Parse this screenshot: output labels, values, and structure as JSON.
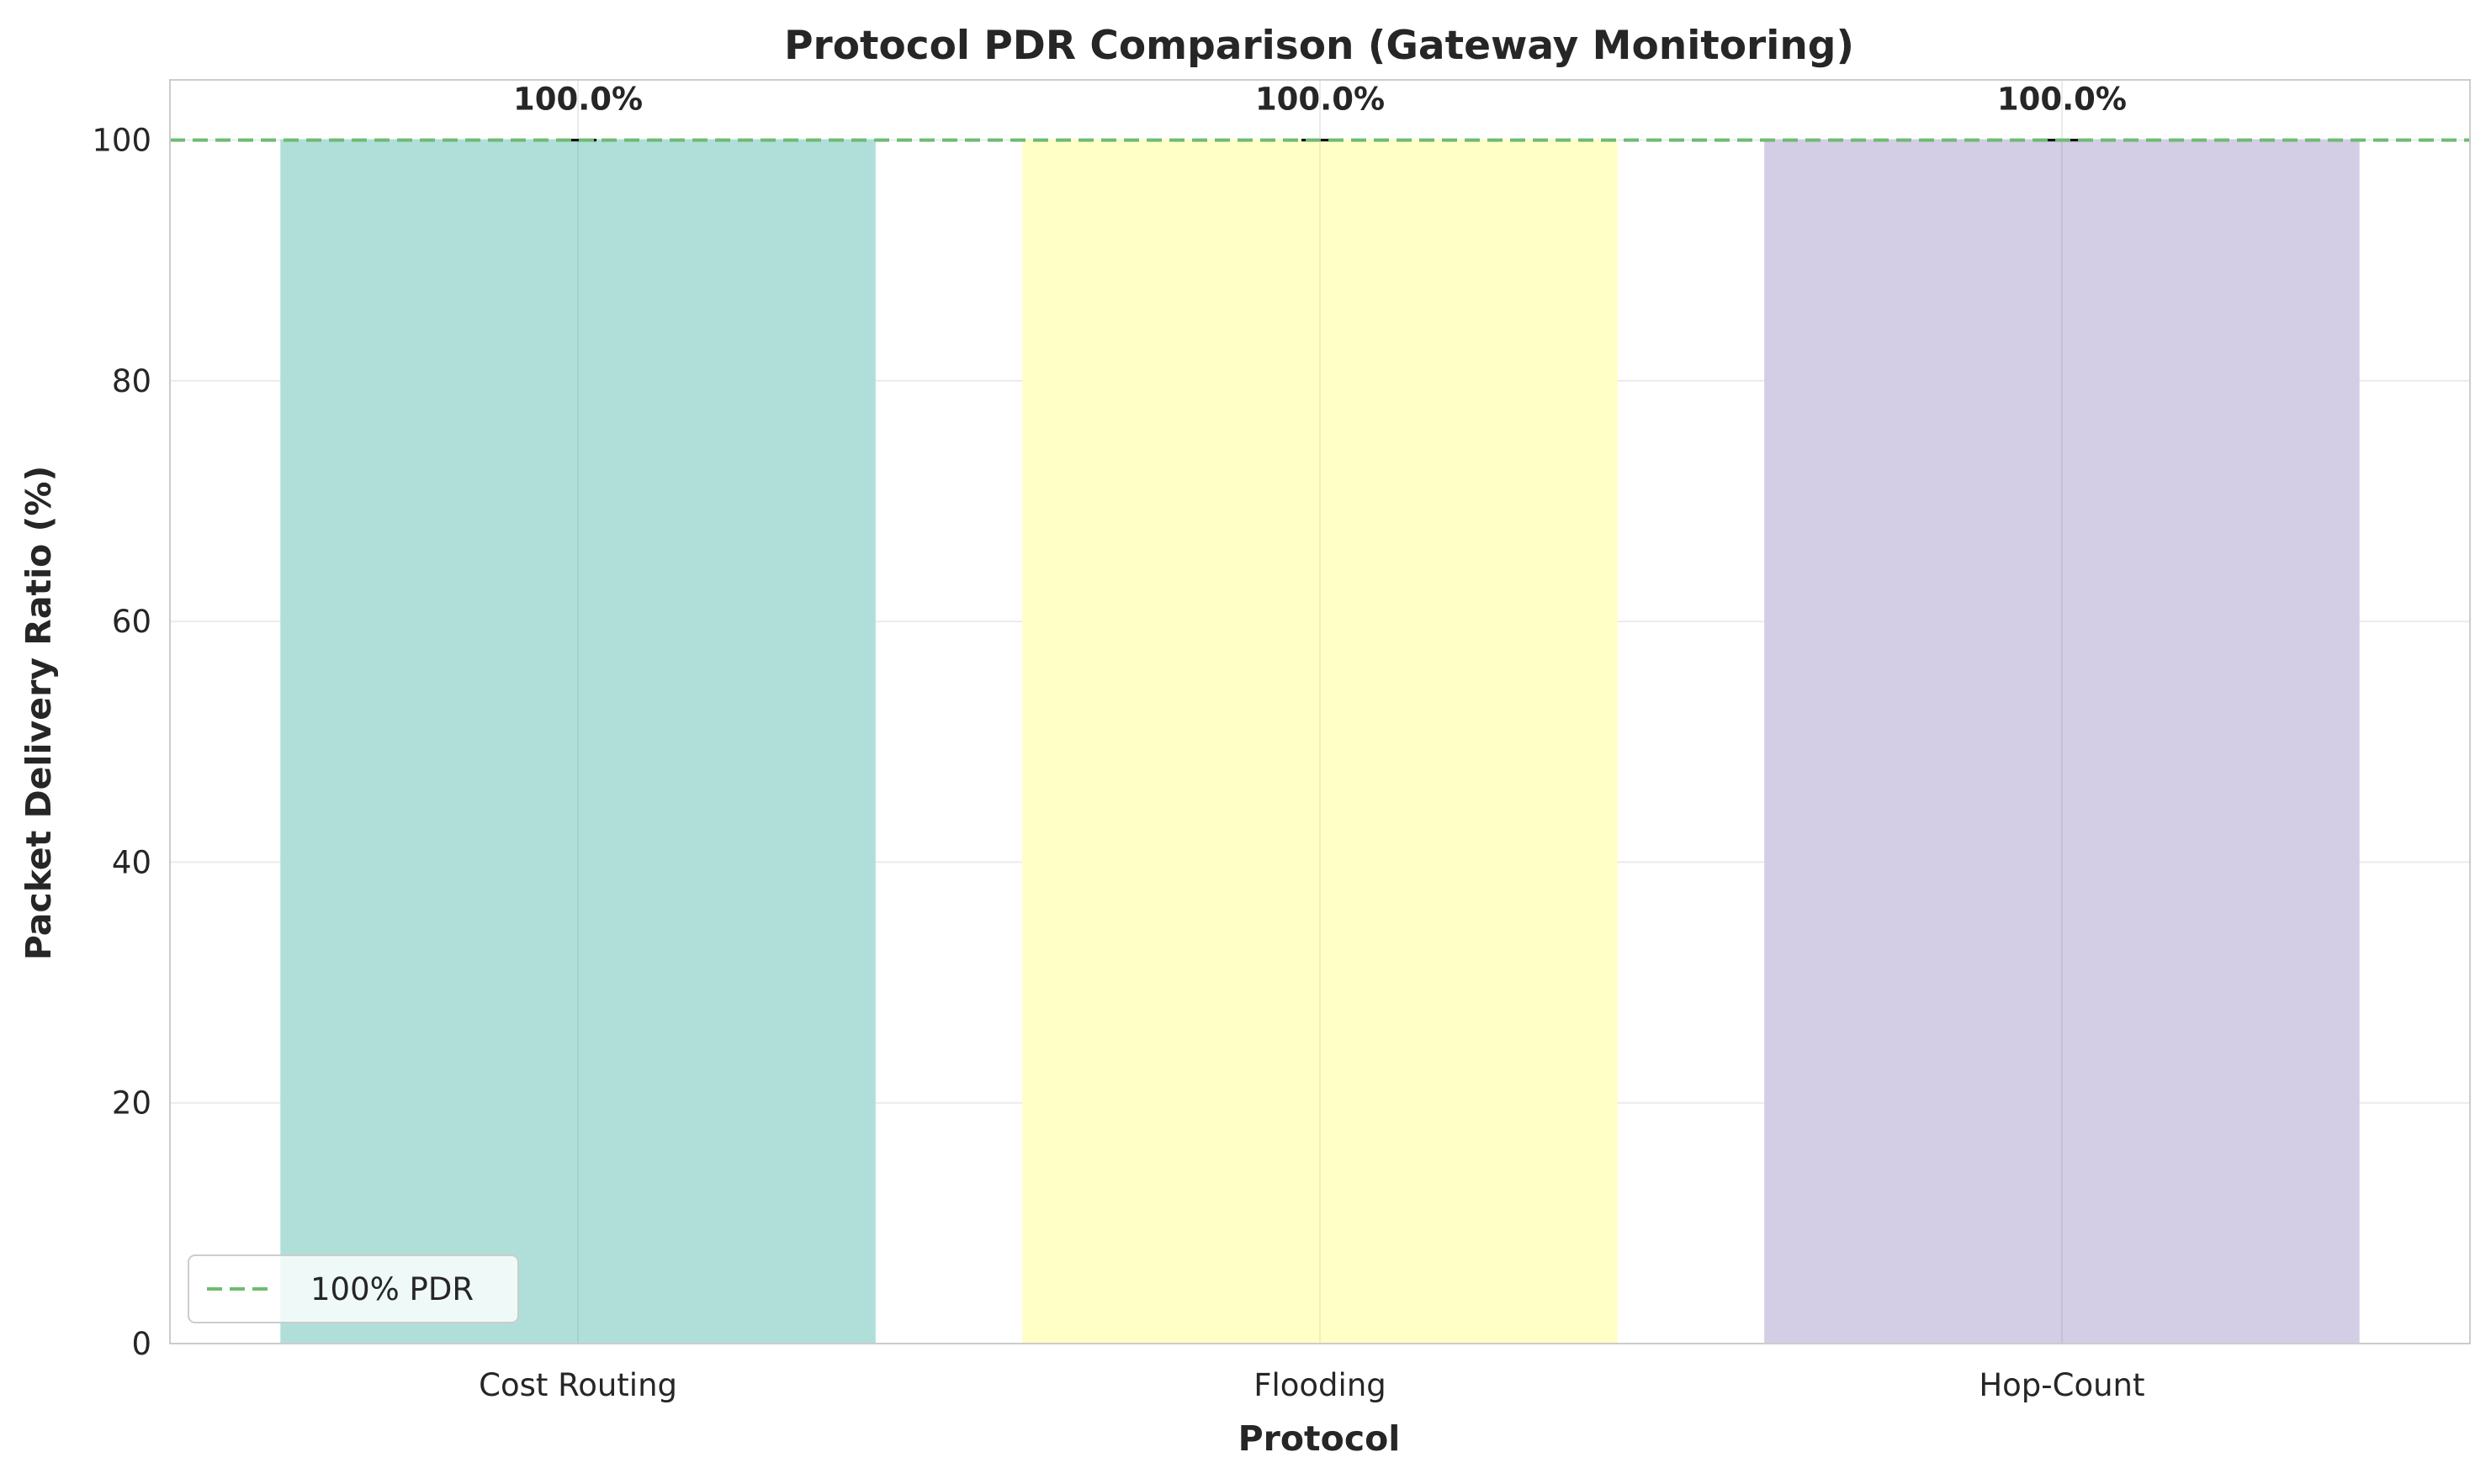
{
  "chart_data": {
    "type": "bar",
    "title": "Protocol PDR Comparison (Gateway Monitoring)",
    "xlabel": "Protocol",
    "ylabel": "Packet Delivery Ratio (%)",
    "categories": [
      "Cost Routing",
      "Flooding",
      "Hop-Count"
    ],
    "values": [
      100.0,
      100.0,
      100.0
    ],
    "value_labels": [
      "100.0%",
      "100.0%",
      "100.0%"
    ],
    "error": [
      0,
      0,
      0
    ],
    "colors": [
      "#b0dfd9",
      "#ffffc6",
      "#d3cde5"
    ],
    "ylim": [
      0,
      105
    ],
    "yticks": [
      0,
      20,
      40,
      60,
      80,
      100
    ],
    "reference_line": {
      "value": 100,
      "label": "100% PDR",
      "color": "#6fbb73",
      "style": "dashed"
    },
    "legend": {
      "position": "lower-left",
      "entries": [
        "100% PDR"
      ]
    },
    "grid": true
  }
}
